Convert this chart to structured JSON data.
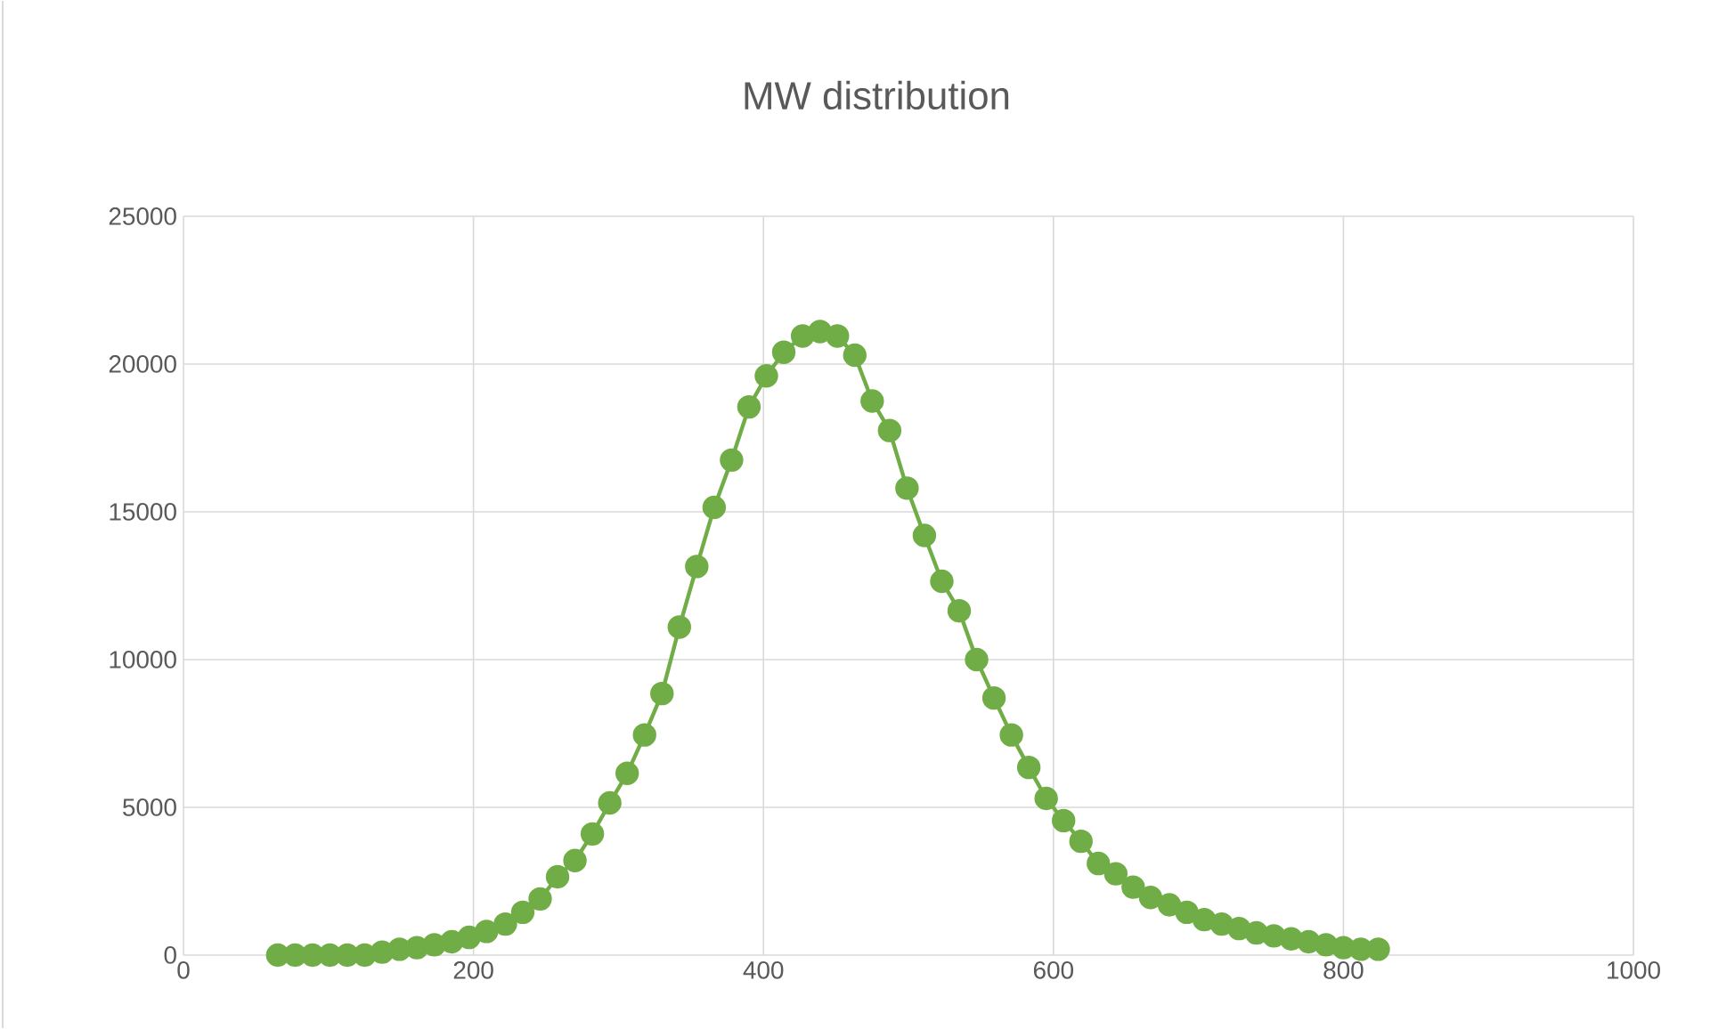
{
  "chart_data": {
    "type": "line",
    "title": "MW distribution",
    "xlim": [
      0,
      1000
    ],
    "xticks": [
      0,
      200,
      400,
      600,
      800,
      1000
    ],
    "ylim": [
      0,
      25000
    ],
    "yticks": [
      0,
      5000,
      10000,
      15000,
      20000,
      25000
    ],
    "grid": true,
    "marker": "circle",
    "line_style": "solid",
    "series": [
      {
        "color": "#70ad47",
        "x": [
          65,
          77,
          89,
          101,
          113,
          125,
          137,
          149,
          161,
          173,
          185,
          197,
          209,
          222,
          234,
          246,
          258,
          270,
          282,
          294,
          306,
          318,
          330,
          342,
          354,
          366,
          378,
          390,
          402,
          414,
          427,
          439,
          451,
          463,
          475,
          487,
          499,
          511,
          523,
          535,
          547,
          559,
          571,
          583,
          595,
          607,
          619,
          631,
          643,
          655,
          667,
          680,
          692,
          704,
          716,
          728,
          740,
          752,
          764,
          776,
          788,
          800,
          812,
          824
        ],
        "values": [
          0,
          0,
          0,
          0,
          0,
          0,
          100,
          200,
          250,
          350,
          450,
          600,
          800,
          1050,
          1450,
          1900,
          2650,
          3200,
          4100,
          5150,
          6150,
          7450,
          8850,
          11100,
          13150,
          15150,
          16750,
          18550,
          19600,
          20400,
          20950,
          21100,
          20950,
          20300,
          18750,
          17750,
          15800,
          14200,
          12650,
          11650,
          10000,
          8700,
          7450,
          6350,
          5300,
          4550,
          3850,
          3100,
          2750,
          2300,
          1950,
          1700,
          1450,
          1200,
          1050,
          900,
          750,
          650,
          550,
          450,
          350,
          250,
          200,
          200
        ]
      }
    ]
  }
}
